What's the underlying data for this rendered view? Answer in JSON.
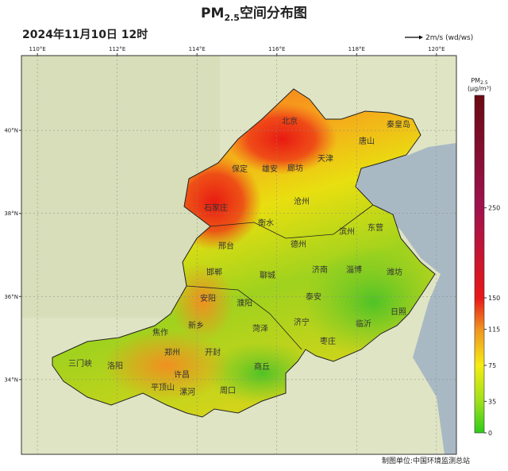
{
  "header": {
    "title_prefix": "PM",
    "title_subscript": "2.5",
    "title_suffix": "空间分布图",
    "datetime": "2024年11月10日 12时",
    "wind_legend": "2m/s (wd/ws)"
  },
  "map": {
    "lon_range": [
      109.6,
      120.5
    ],
    "lat_range": [
      32.2,
      41.8
    ],
    "lon_ticks": [
      {
        "value": 110,
        "label": "110°E"
      },
      {
        "value": 112,
        "label": "112°E"
      },
      {
        "value": 114,
        "label": "114°E"
      },
      {
        "value": 116,
        "label": "116°E"
      },
      {
        "value": 118,
        "label": "118°E"
      },
      {
        "value": 120,
        "label": "120°E"
      }
    ],
    "lat_ticks": [
      {
        "value": 34,
        "label": "34°N"
      },
      {
        "value": 36,
        "label": "36°N"
      },
      {
        "value": 38,
        "label": "38°N"
      },
      {
        "value": 40,
        "label": "40°N"
      }
    ],
    "cities": [
      "北京",
      "秦皇岛",
      "唐山",
      "天津",
      "廊坊",
      "保定",
      "雄安",
      "石家庄",
      "沧州",
      "衡水",
      "滨州",
      "东营",
      "德州",
      "邢台",
      "邯郸",
      "聊城",
      "济南",
      "淄博",
      "潍坊",
      "安阳",
      "濮阳",
      "泰安",
      "新乡",
      "焦作",
      "济宁",
      "临沂",
      "日照",
      "菏泽",
      "郑州",
      "开封",
      "枣庄",
      "三门峡",
      "洛阳",
      "商丘",
      "许昌",
      "平顶山",
      "漯河",
      "周口"
    ]
  },
  "colorbar": {
    "label_prefix": "PM",
    "label_subscript": "2.5",
    "label_unit": "(μg/m³)",
    "range": [
      0,
      375
    ],
    "ticks": [
      0,
      35,
      75,
      115,
      150,
      250
    ]
  },
  "footer": "制图单位:中国环境监测总站"
}
